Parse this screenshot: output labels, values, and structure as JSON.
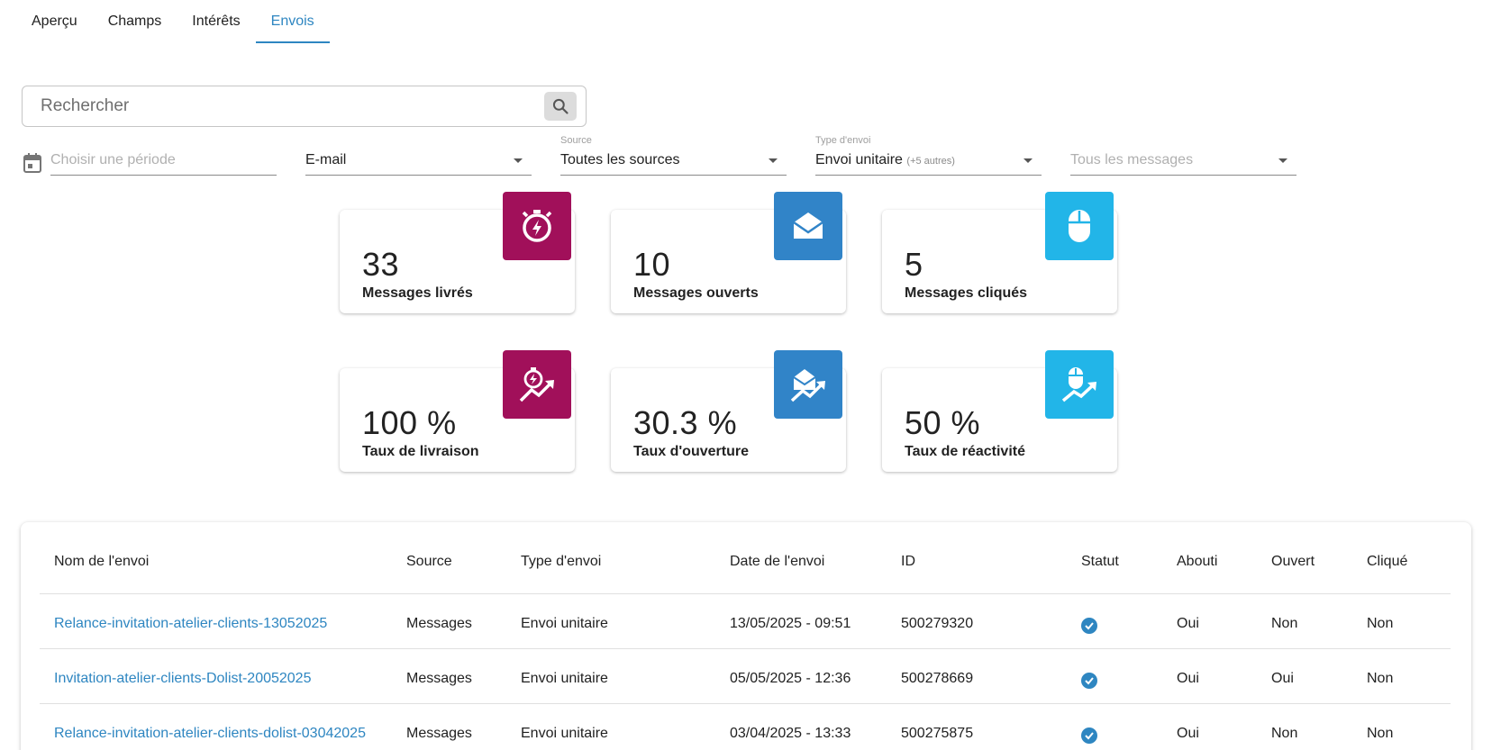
{
  "tabs": [
    {
      "label": "Aperçu"
    },
    {
      "label": "Champs"
    },
    {
      "label": "Intérêts"
    },
    {
      "label": "Envois"
    }
  ],
  "search": {
    "placeholder": "Rechercher"
  },
  "filters": {
    "period": {
      "placeholder": "Choisir une période"
    },
    "channel": {
      "value": "E-mail"
    },
    "source": {
      "label": "Source",
      "value": "Toutes les sources"
    },
    "send_type": {
      "label": "Type d'envoi",
      "value": "Envoi unitaire",
      "extra": "(+5 autres)"
    },
    "messages": {
      "placeholder": "Tous les messages"
    }
  },
  "stats": [
    {
      "value": "33",
      "label": "Messages livrés",
      "icon": "stopwatch-icon",
      "color": "#a1105a"
    },
    {
      "value": "10",
      "label": "Messages ouverts",
      "icon": "envelope-open-icon",
      "color": "#3184c8"
    },
    {
      "value": "5",
      "label": "Messages cliqués",
      "icon": "mouse-icon",
      "color": "#22b5e8"
    },
    {
      "value": "100 %",
      "label": "Taux de livraison",
      "icon": "stopwatch-trend-icon",
      "color": "#a1105a"
    },
    {
      "value": "30.3 %",
      "label": "Taux d'ouverture",
      "icon": "envelope-trend-icon",
      "color": "#3184c8"
    },
    {
      "value": "50 %",
      "label": "Taux de réactivité",
      "icon": "mouse-trend-icon",
      "color": "#22b5e8"
    }
  ],
  "table": {
    "headers": [
      "Nom de l'envoi",
      "Source",
      "Type d'envoi",
      "Date de l'envoi",
      "ID",
      "Statut",
      "Abouti",
      "Ouvert",
      "Cliqué"
    ],
    "rows": [
      {
        "name": "Relance-invitation-atelier-clients-13052025",
        "source": "Messages",
        "type": "Envoi unitaire",
        "date": "13/05/2025 - 09:51",
        "id": "500279320",
        "status": "check-circle-icon",
        "abouti": "Oui",
        "ouvert": "Non",
        "clique": "Non"
      },
      {
        "name": "Invitation-atelier-clients-Dolist-20052025",
        "source": "Messages",
        "type": "Envoi unitaire",
        "date": "05/05/2025 - 12:36",
        "id": "500278669",
        "status": "check-circle-icon",
        "abouti": "Oui",
        "ouvert": "Oui",
        "clique": "Non"
      },
      {
        "name": "Relance-invitation-atelier-clients-dolist-03042025",
        "source": "Messages",
        "type": "Envoi unitaire",
        "date": "03/04/2025 - 13:33",
        "id": "500275875",
        "status": "check-circle-icon",
        "abouti": "Oui",
        "ouvert": "Non",
        "clique": "Non"
      }
    ]
  },
  "colors": {
    "accent": "#2e86c1",
    "magenta": "#a1105a",
    "blue": "#3184c8",
    "cyan": "#22b5e8"
  }
}
